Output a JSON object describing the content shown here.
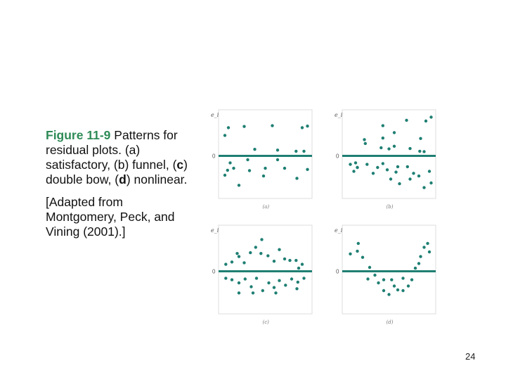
{
  "caption": {
    "figure_label": "Figure 11-9",
    "line1_rest": " Patterns for residual plots. (a) satisfactory, (b) funnel, (",
    "c_letter": "c",
    "line2_mid": ") double bow, (",
    "d_letter": "d",
    "line2_end": ") nonlinear.",
    "adapted": "[Adapted from Montgomery, Peck, and Vining (2001).]"
  },
  "page_number": "24",
  "colors": {
    "accent": "#1f7f73",
    "dot": "#1f7f73",
    "frame": "#dddddd",
    "label_green": "#2e8b57"
  },
  "chart_data": [
    {
      "type": "scatter",
      "id": "a",
      "ylabel": "e_i",
      "zero_label": "0",
      "sublabel": "(a)",
      "ylim": [
        -1,
        1
      ],
      "xlim": [
        0,
        1
      ],
      "points": [
        [
          0.04,
          0.53
        ],
        [
          0.08,
          0.73
        ],
        [
          0.26,
          0.76
        ],
        [
          0.58,
          0.78
        ],
        [
          0.92,
          0.73
        ],
        [
          0.98,
          0.77
        ],
        [
          0.1,
          -0.18
        ],
        [
          0.07,
          -0.37
        ],
        [
          0.64,
          0.15
        ],
        [
          0.85,
          0.12
        ],
        [
          0.94,
          0.12
        ],
        [
          0.38,
          0.17
        ],
        [
          0.3,
          -0.1
        ],
        [
          0.32,
          -0.38
        ],
        [
          0.5,
          -0.32
        ],
        [
          0.64,
          -0.1
        ],
        [
          0.72,
          -0.32
        ],
        [
          0.98,
          -0.35
        ],
        [
          0.04,
          -0.5
        ],
        [
          0.14,
          -0.32
        ],
        [
          0.86,
          -0.58
        ],
        [
          0.2,
          -0.76
        ],
        [
          0.48,
          -0.52
        ]
      ]
    },
    {
      "type": "scatter",
      "id": "b",
      "ylabel": "e_i",
      "zero_label": "0",
      "sublabel": "(b)",
      "ylim": [
        -1,
        1
      ],
      "xlim": [
        0,
        1
      ],
      "points": [
        [
          0.22,
          0.42
        ],
        [
          0.43,
          0.78
        ],
        [
          0.56,
          0.6
        ],
        [
          0.7,
          0.92
        ],
        [
          0.86,
          0.45
        ],
        [
          0.92,
          0.9
        ],
        [
          0.98,
          1.0
        ],
        [
          0.23,
          0.32
        ],
        [
          0.41,
          0.21
        ],
        [
          0.43,
          0.46
        ],
        [
          0.5,
          0.18
        ],
        [
          0.56,
          0.25
        ],
        [
          0.74,
          0.19
        ],
        [
          0.85,
          0.12
        ],
        [
          0.9,
          0.11
        ],
        [
          0.06,
          -0.22
        ],
        [
          0.14,
          -0.3
        ],
        [
          0.25,
          -0.22
        ],
        [
          0.37,
          -0.3
        ],
        [
          0.43,
          -0.2
        ],
        [
          0.48,
          -0.36
        ],
        [
          0.6,
          -0.28
        ],
        [
          0.1,
          -0.4
        ],
        [
          0.12,
          -0.18
        ],
        [
          0.32,
          -0.45
        ],
        [
          0.52,
          -0.6
        ],
        [
          0.62,
          -0.72
        ],
        [
          0.74,
          -0.6
        ],
        [
          0.78,
          -0.45
        ],
        [
          0.84,
          -0.52
        ],
        [
          0.9,
          -0.82
        ],
        [
          0.96,
          -0.4
        ],
        [
          0.98,
          -0.7
        ],
        [
          0.14,
          -0.3
        ],
        [
          0.58,
          -0.42
        ],
        [
          0.71,
          -0.28
        ]
      ]
    },
    {
      "type": "scatter",
      "id": "c",
      "ylabel": "e_i",
      "zero_label": "0",
      "sublabel": "(c)",
      "ylim": [
        -1,
        1
      ],
      "xlim": [
        0,
        1
      ],
      "points": [
        [
          0.05,
          0.18
        ],
        [
          0.12,
          0.24
        ],
        [
          0.2,
          0.38
        ],
        [
          0.26,
          0.22
        ],
        [
          0.33,
          0.48
        ],
        [
          0.39,
          0.62
        ],
        [
          0.46,
          0.82
        ],
        [
          0.53,
          0.4
        ],
        [
          0.6,
          0.26
        ],
        [
          0.66,
          0.56
        ],
        [
          0.72,
          0.32
        ],
        [
          0.78,
          0.28
        ],
        [
          0.85,
          0.28
        ],
        [
          0.92,
          0.18
        ],
        [
          0.18,
          0.46
        ],
        [
          0.45,
          0.46
        ],
        [
          0.88,
          0.08
        ],
        [
          0.05,
          -0.18
        ],
        [
          0.12,
          -0.22
        ],
        [
          0.2,
          -0.3
        ],
        [
          0.27,
          -0.2
        ],
        [
          0.34,
          -0.4
        ],
        [
          0.4,
          -0.18
        ],
        [
          0.47,
          -0.5
        ],
        [
          0.54,
          -0.3
        ],
        [
          0.6,
          -0.42
        ],
        [
          0.66,
          -0.24
        ],
        [
          0.73,
          -0.36
        ],
        [
          0.8,
          -0.2
        ],
        [
          0.87,
          -0.28
        ],
        [
          0.94,
          -0.18
        ],
        [
          0.2,
          -0.56
        ],
        [
          0.36,
          -0.56
        ],
        [
          0.62,
          -0.56
        ],
        [
          0.86,
          -0.45
        ]
      ]
    },
    {
      "type": "scatter",
      "id": "d",
      "ylabel": "e_i",
      "zero_label": "0",
      "sublabel": "(d)",
      "ylim": [
        -1,
        1
      ],
      "xlim": [
        0,
        1
      ],
      "points": [
        [
          0.06,
          0.45
        ],
        [
          0.14,
          0.52
        ],
        [
          0.15,
          0.72
        ],
        [
          0.2,
          0.36
        ],
        [
          0.28,
          0.1
        ],
        [
          0.34,
          -0.1
        ],
        [
          0.38,
          -0.3
        ],
        [
          0.44,
          -0.22
        ],
        [
          0.44,
          -0.5
        ],
        [
          0.5,
          -0.6
        ],
        [
          0.56,
          -0.38
        ],
        [
          0.6,
          -0.48
        ],
        [
          0.66,
          -0.5
        ],
        [
          0.72,
          -0.38
        ],
        [
          0.76,
          -0.22
        ],
        [
          0.8,
          0.08
        ],
        [
          0.84,
          0.2
        ],
        [
          0.86,
          0.38
        ],
        [
          0.9,
          0.62
        ],
        [
          0.94,
          0.72
        ],
        [
          0.96,
          0.5
        ],
        [
          0.26,
          -0.2
        ],
        [
          0.53,
          -0.22
        ],
        [
          0.66,
          -0.18
        ]
      ]
    }
  ]
}
